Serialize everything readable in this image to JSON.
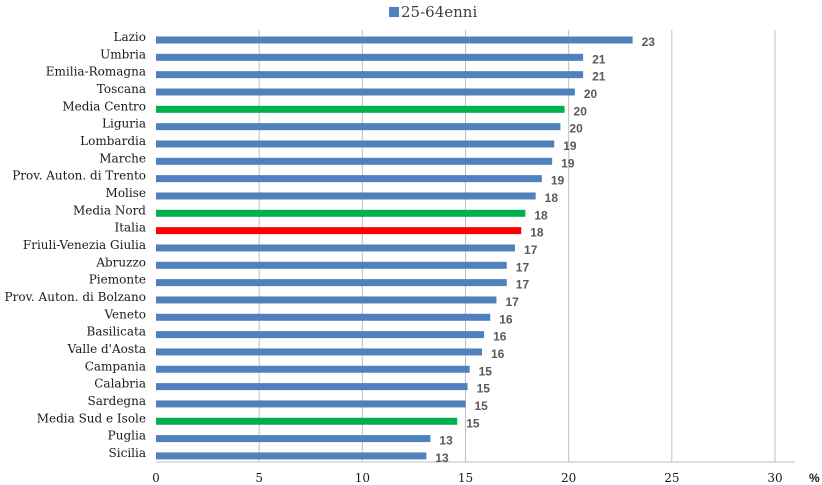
{
  "chart_data": {
    "type": "bar",
    "orientation": "horizontal",
    "categories": [
      "Lazio",
      "Umbria",
      "Emilia-Romagna",
      "Toscana",
      "Media Centro",
      "Liguria",
      "Lombardia",
      "Marche",
      "Prov. Auton. di Trento",
      "Molise",
      "Media Nord",
      "Italia",
      "Friuli-Venezia Giulia",
      "Abruzzo",
      "Piemonte",
      "Prov. Auton. di Bolzano",
      "Veneto",
      "Basilicata",
      "Valle d'Aosta",
      "Campania",
      "Calabria",
      "Sardegna",
      "Media Sud e Isole",
      "Puglia",
      "Sicilia"
    ],
    "values": [
      23.1,
      20.7,
      20.7,
      20.3,
      19.8,
      19.6,
      19.3,
      19.2,
      18.7,
      18.4,
      17.9,
      17.7,
      17.4,
      17.0,
      17.0,
      16.5,
      16.2,
      15.9,
      15.8,
      15.2,
      15.1,
      15.0,
      14.6,
      13.3,
      13.1
    ],
    "labels": [
      "23",
      "21",
      "21",
      "20",
      "20",
      "20",
      "19",
      "19",
      "19",
      "18",
      "18",
      "18",
      "17",
      "17",
      "17",
      "17",
      "16",
      "16",
      "16",
      "15",
      "15",
      "15",
      "15",
      "13",
      "13"
    ],
    "bar_colors": [
      "#4f81bd",
      "#4f81bd",
      "#4f81bd",
      "#4f81bd",
      "#00b050",
      "#4f81bd",
      "#4f81bd",
      "#4f81bd",
      "#4f81bd",
      "#4f81bd",
      "#00b050",
      "#ff0000",
      "#4f81bd",
      "#4f81bd",
      "#4f81bd",
      "#4f81bd",
      "#4f81bd",
      "#4f81bd",
      "#4f81bd",
      "#4f81bd",
      "#4f81bd",
      "#4f81bd",
      "#00b050",
      "#4f81bd",
      "#4f81bd"
    ],
    "series": [
      {
        "name": "25-64enni"
      }
    ],
    "xlim": [
      0,
      30
    ],
    "xticks": [
      "0",
      "5",
      "10",
      "15",
      "20",
      "25",
      "30"
    ],
    "xlabel": "%",
    "grid": "vertical",
    "legend_position": "top",
    "colors": {
      "default": "#4f81bd",
      "macro_area": "#00b050",
      "national": "#ff0000"
    }
  }
}
